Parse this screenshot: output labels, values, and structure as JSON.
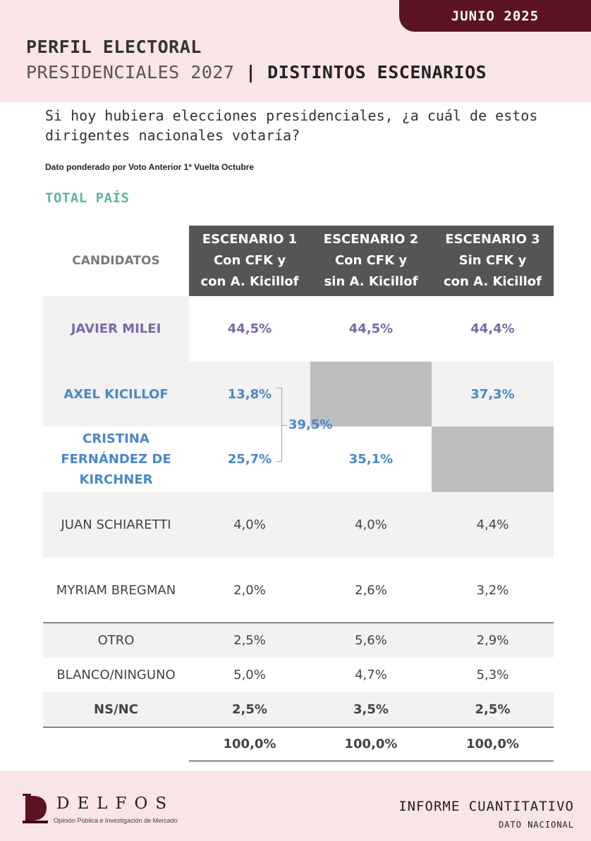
{
  "header": {
    "date": "JUNIO 2025",
    "title_line1": "PERFIL ELECTORAL",
    "title_line2_a": "PRESIDENCIALES 2027",
    "title_line2_sep": "|",
    "title_line2_b": "DISTINTOS ESCENARIOS"
  },
  "question": "Si hoy hubiera elecciones presidenciales, ¿a cuál de estos dirigentes nacionales votaría?",
  "note": "Dato ponderado por Voto Anterior 1ª Vuelta Octubre",
  "section_label": "TOTAL PAÍS",
  "table": {
    "header_candidates": "CANDIDATOS",
    "scenarios": [
      {
        "line1": "ESCENARIO 1",
        "line2": "Con CFK y",
        "line3": "con A. Kicillof"
      },
      {
        "line1": "ESCENARIO 2",
        "line2": "Con CFK y",
        "line3": "sin A. Kicillof"
      },
      {
        "line1": "ESCENARIO 3",
        "line2": "Sin CFK y",
        "line3": "con A. Kicillof"
      }
    ],
    "rows": {
      "milei": {
        "name": "JAVIER MILEI",
        "values": [
          "44,5%",
          "44,5%",
          "44,4%"
        ]
      },
      "kicillof": {
        "name": "AXEL KICILLOF",
        "values": [
          "13,8%",
          "",
          "37,3%"
        ]
      },
      "cfk": {
        "name_line1": "CRISTINA",
        "name_line2": "FERNÁNDEZ DE",
        "name_line3": "KIRCHNER",
        "values": [
          "25,7%",
          "35,1%",
          ""
        ]
      },
      "schiaretti": {
        "name": "JUAN SCHIARETTI",
        "values": [
          "4,0%",
          "4,0%",
          "4,4%"
        ]
      },
      "bregman": {
        "name": "MYRIAM BREGMAN",
        "values": [
          "2,0%",
          "2,6%",
          "3,2%"
        ]
      },
      "otro": {
        "name": "OTRO",
        "values": [
          "2,5%",
          "5,6%",
          "2,9%"
        ]
      },
      "blanco": {
        "name": "BLANCO/NINGUNO",
        "values": [
          "5,0%",
          "4,7%",
          "5,3%"
        ]
      },
      "nsnc": {
        "name": "NS/NC",
        "values": [
          "2,5%",
          "3,5%",
          "2,5%"
        ]
      }
    },
    "combined_scenario1": "39,5%",
    "totals": [
      "100,0%",
      "100,0%",
      "100,0%"
    ]
  },
  "footer": {
    "logo_word": "DELFOS",
    "logo_sub": "Opinión Pública e Investigación de Mercado",
    "report_title": "INFORME CUANTITATIVO",
    "report_sub": "DATO NACIONAL"
  },
  "colors": {
    "brand": "#5c1320",
    "band": "#f9e4e7",
    "header_cell": "#555555",
    "milei": "#7b68a9",
    "peronism": "#4a88c7",
    "section": "#5fb59b"
  }
}
